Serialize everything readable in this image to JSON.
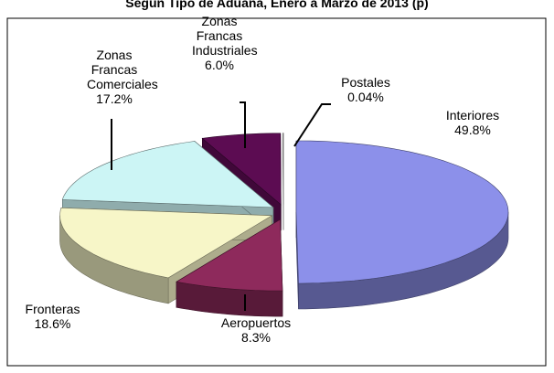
{
  "chart_data": {
    "type": "pie",
    "title": "Según Tipo de Aduana, Enero a Marzo de 2013 (p)",
    "categories": [
      "Interiores",
      "Aeropuertos",
      "Fronteras",
      "Zonas Francas Comerciales",
      "Zonas Francas Industriales",
      "Postales"
    ],
    "values": [
      49.8,
      8.3,
      18.6,
      17.2,
      6.0,
      0.04
    ],
    "value_labels": [
      "49.8%",
      "8.3%",
      "18.6%",
      "17.2%",
      "6.0%",
      "0.04%"
    ],
    "colors": [
      "#8c90ea",
      "#8e2a5c",
      "#f7f6c8",
      "#ccf5f5",
      "#5c0c52",
      "#f4f4f4"
    ]
  }
}
